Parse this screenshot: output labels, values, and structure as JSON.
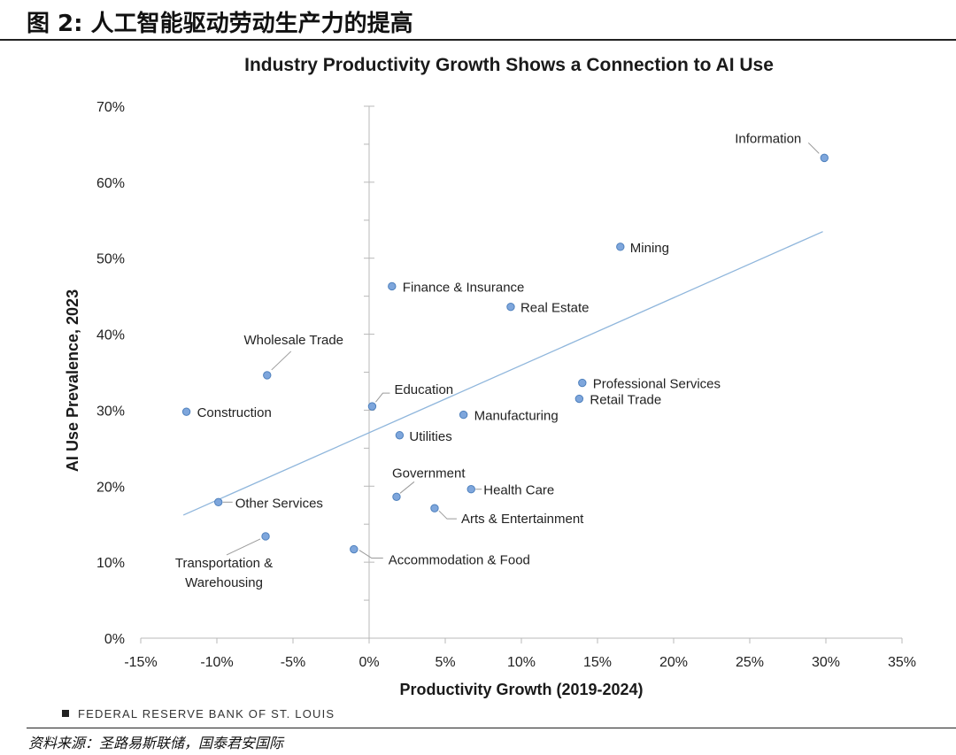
{
  "figure": {
    "title": "图 2: 人工智能驱动劳动生产力的提高",
    "source_credit": "FEDERAL RESERVE BANK OF ST. LOUIS",
    "footer_source": "资料来源：圣路易斯联储，国泰君安国际"
  },
  "chart_data": {
    "type": "scatter",
    "title": "Industry Productivity Growth Shows a Connection to AI Use",
    "xlabel": "Productivity Growth (2019-2024)",
    "ylabel": "AI Use Prevalence, 2023",
    "xlim": [
      -15,
      35
    ],
    "ylim": [
      0,
      70
    ],
    "xticks": [
      -15,
      -10,
      -5,
      0,
      5,
      10,
      15,
      20,
      25,
      30,
      35
    ],
    "yticks": [
      0,
      10,
      20,
      30,
      40,
      50,
      60,
      70
    ],
    "xtick_labels": [
      "-15%",
      "-10%",
      "-5%",
      "0%",
      "5%",
      "10%",
      "15%",
      "20%",
      "25%",
      "30%",
      "35%"
    ],
    "ytick_labels": [
      "0%",
      "10%",
      "20%",
      "30%",
      "40%",
      "50%",
      "60%",
      "70%"
    ],
    "grid": false,
    "marker_color": "#7ea6dc",
    "marker_edge_color": "#4f81bd",
    "trendline_color": "#8fb6dc",
    "trendline": {
      "x": [
        -12.2,
        29.8
      ],
      "y": [
        16.2,
        53.5
      ]
    },
    "points": [
      {
        "label": "Information",
        "x": 29.9,
        "y": 63.2
      },
      {
        "label": "Mining",
        "x": 16.5,
        "y": 51.5
      },
      {
        "label": "Finance & Insurance",
        "x": 1.5,
        "y": 46.3
      },
      {
        "label": "Real Estate",
        "x": 9.3,
        "y": 43.6
      },
      {
        "label": "Wholesale Trade",
        "x": -6.7,
        "y": 34.6
      },
      {
        "label": "Professional Services",
        "x": 14.0,
        "y": 33.6
      },
      {
        "label": "Retail Trade",
        "x": 13.8,
        "y": 31.5
      },
      {
        "label": "Education",
        "x": 0.2,
        "y": 30.5
      },
      {
        "label": "Construction",
        "x": -12.0,
        "y": 29.8
      },
      {
        "label": "Manufacturing",
        "x": 6.2,
        "y": 29.4
      },
      {
        "label": "Utilities",
        "x": 2.0,
        "y": 26.7
      },
      {
        "label": "Health Care",
        "x": 6.7,
        "y": 19.6
      },
      {
        "label": "Government",
        "x": 1.8,
        "y": 18.6
      },
      {
        "label": "Other Services",
        "x": -9.9,
        "y": 17.9
      },
      {
        "label": "Arts & Entertainment",
        "x": 4.3,
        "y": 17.1
      },
      {
        "label": "Transportation & Warehousing",
        "label_lines": [
          "Transportation &",
          "Warehousing"
        ],
        "x": -6.8,
        "y": 13.4
      },
      {
        "label": "Accommodation & Food",
        "x": -1.0,
        "y": 11.7
      }
    ]
  }
}
